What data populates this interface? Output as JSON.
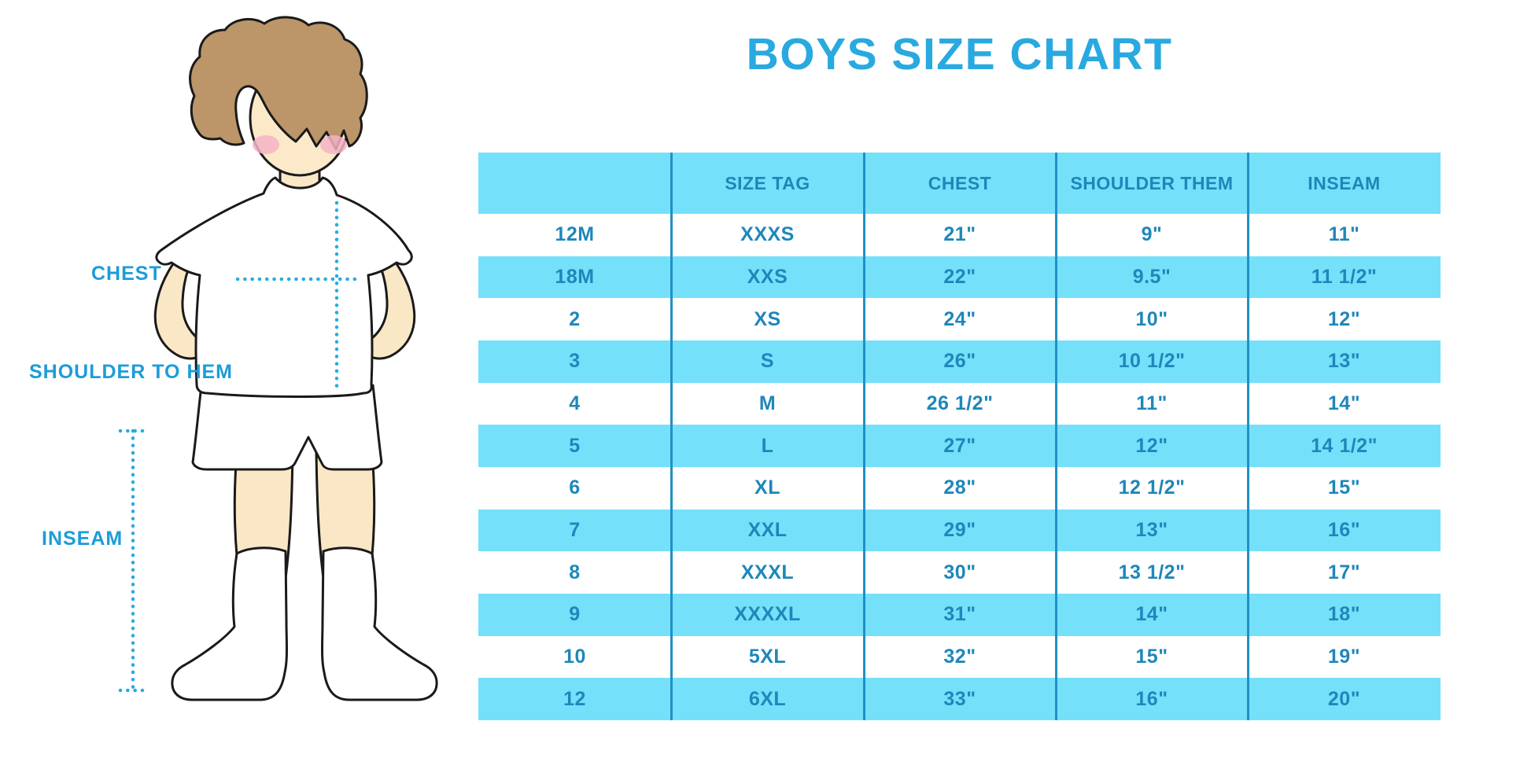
{
  "title": "BOYS SIZE CHART",
  "figure": {
    "labels": {
      "chest": "CHEST",
      "shoulder_to_hem": "SHOULDER TO HEM",
      "inseam": "INSEAM"
    },
    "description": "Cartoon boy in white t-shirt, white shorts and knee socks with dotted measurement guide lines"
  },
  "chart_data": {
    "type": "table",
    "title": "BOYS SIZE CHART",
    "columns": [
      "",
      "SIZE TAG",
      "CHEST",
      "SHOULDER THEM",
      "INSEAM"
    ],
    "rows": [
      [
        "12M",
        "XXXS",
        "21\"",
        "9\"",
        "11\""
      ],
      [
        "18M",
        "XXS",
        "22\"",
        "9.5\"",
        "11 1/2\""
      ],
      [
        "2",
        "XS",
        "24\"",
        "10\"",
        "12\""
      ],
      [
        "3",
        "S",
        "26\"",
        "10 1/2\"",
        "13\""
      ],
      [
        "4",
        "M",
        "26 1/2\"",
        "11\"",
        "14\""
      ],
      [
        "5",
        "L",
        "27\"",
        "12\"",
        "14 1/2\""
      ],
      [
        "6",
        "XL",
        "28\"",
        "12 1/2\"",
        "15\""
      ],
      [
        "7",
        "XXL",
        "29\"",
        "13\"",
        "16\""
      ],
      [
        "8",
        "XXXL",
        "30\"",
        "13 1/2\"",
        "17\""
      ],
      [
        "9",
        "XXXXL",
        "31\"",
        "14\"",
        "18\""
      ],
      [
        "10",
        "5XL",
        "32\"",
        "15\"",
        "19\""
      ],
      [
        "12",
        "6XL",
        "33\"",
        "16\"",
        "20\""
      ]
    ],
    "layout": {
      "header_bg": "#75E0FA",
      "row_alternate_bg": [
        "#FFFFFF",
        "#75E0FA"
      ],
      "grid": "vertical column separators only",
      "legend": "none"
    }
  },
  "colors": {
    "title_blue": "#29A9E0",
    "band_blue": "#75E0FA",
    "table_text": "#1E87BA",
    "separator_line": "#1F90C6",
    "label_blue": "#1C9CD9",
    "dotted_line_cyan": "#29ABE2",
    "skin": "#FAE7C6",
    "hair_brown": "#BC9568",
    "blush_pink": "#F5B3C5",
    "outline": "#1A1A1A",
    "background": "#FFFFFF"
  }
}
